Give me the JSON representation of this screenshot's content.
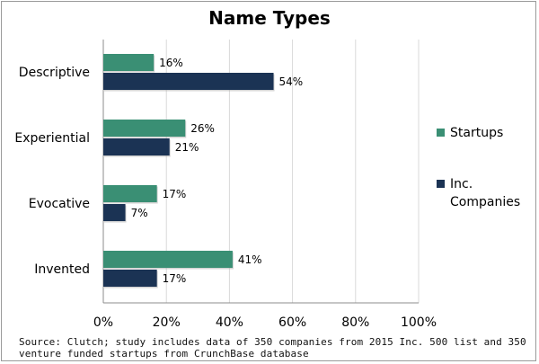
{
  "chart_data": {
    "type": "bar",
    "orientation": "horizontal",
    "title": "Name Types",
    "categories": [
      "Descriptive",
      "Experiential",
      "Evocative",
      "Invented"
    ],
    "series": [
      {
        "name": "Startups",
        "values": [
          16,
          26,
          17,
          41
        ],
        "labels": [
          "16%",
          "26%",
          "17%",
          "41%"
        ],
        "color": "#3a8f74"
      },
      {
        "name": "Inc. Companies",
        "values": [
          54,
          21,
          7,
          17
        ],
        "labels": [
          "54%",
          "21%",
          "7%",
          "17%"
        ],
        "color": "#1b3354"
      }
    ],
    "xlim": [
      0,
      100
    ],
    "xticks": [
      "0%",
      "20%",
      "40%",
      "60%",
      "80%",
      "100%"
    ],
    "grid": true,
    "legend": {
      "placement": "right",
      "entries": [
        "Startups",
        "Inc. Companies"
      ]
    }
  },
  "source": "Source: Clutch; study includes data of 350 companies from 2015 Inc. 500 list and 350 venture funded startups from CrunchBase database"
}
